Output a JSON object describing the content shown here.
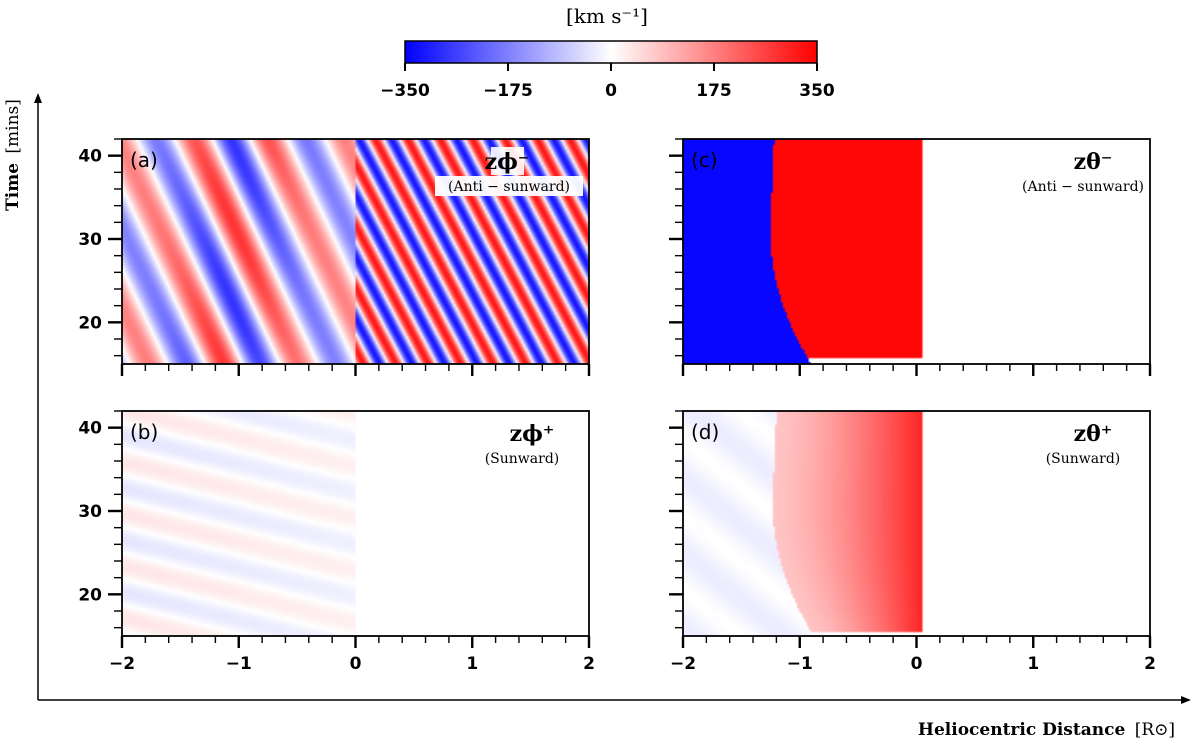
{
  "colorbar": {
    "unit_label": "[km s⁻¹]",
    "ticks": [
      -350,
      -175,
      0,
      175,
      350
    ],
    "tick_labels": [
      "−350",
      "−175",
      "0",
      "175",
      "350"
    ],
    "range": [
      -350,
      350
    ],
    "colors": {
      "low": "#0000ff",
      "mid": "#ffffff",
      "high": "#ff0000"
    }
  },
  "axes": {
    "ylabel": "Time",
    "ylabel_unit": "[mins]",
    "xlabel": "Heliocentric Distance",
    "xlabel_unit": "[R⊙]"
  },
  "chart_data": [
    {
      "type": "heatmap",
      "panel": "(a)",
      "title": "zϕ⁻",
      "subtitle": "(Anti − sunward)",
      "xlim": [
        -2,
        2
      ],
      "ylim": [
        15,
        42
      ],
      "xticks": [
        -2,
        -1,
        0,
        1,
        2
      ],
      "yticks": [
        20,
        30,
        40
      ],
      "ytick_labels": [
        "20",
        "30",
        "40"
      ],
      "pattern": "oscillating stripes, strong amplitude both sides, high-frequency on x>0",
      "max_abs_value": 350
    },
    {
      "type": "heatmap",
      "panel": "(b)",
      "title": "zϕ⁺",
      "subtitle": "(Sunward)",
      "xlim": [
        -2,
        2
      ],
      "ylim": [
        15,
        42
      ],
      "xticks": [
        -2,
        -1,
        0,
        1,
        2
      ],
      "yticks": [
        20,
        30,
        40
      ],
      "xtick_labels": [
        "−2",
        "−1",
        "0",
        "1",
        "2"
      ],
      "ytick_labels": [
        "20",
        "30",
        "40"
      ],
      "pattern": "faint stripes for x<0, near zero for x>0",
      "max_abs_value": 40
    },
    {
      "type": "heatmap",
      "panel": "(c)",
      "title": "zθ⁻",
      "subtitle": "(Anti − sunward)",
      "xlim": [
        -2,
        2
      ],
      "ylim": [
        15,
        42
      ],
      "xticks": [
        -2,
        -1,
        0,
        1,
        2
      ],
      "yticks": [
        20,
        30,
        40
      ],
      "pattern": "blue region x<~-1, red region to x~0.05, zero beyond",
      "max_abs_value": 350
    },
    {
      "type": "heatmap",
      "panel": "(d)",
      "title": "zθ⁺",
      "subtitle": "(Sunward)",
      "xlim": [
        -2,
        2
      ],
      "ylim": [
        15,
        42
      ],
      "xticks": [
        -2,
        -1,
        0,
        1,
        2
      ],
      "yticks": [
        20,
        30,
        40
      ],
      "xtick_labels": [
        "−2",
        "−1",
        "0",
        "1",
        "2"
      ],
      "pattern": "faint blue x<~-1, red gradient rising toward x~0, zero beyond",
      "max_abs_value": 300
    }
  ]
}
